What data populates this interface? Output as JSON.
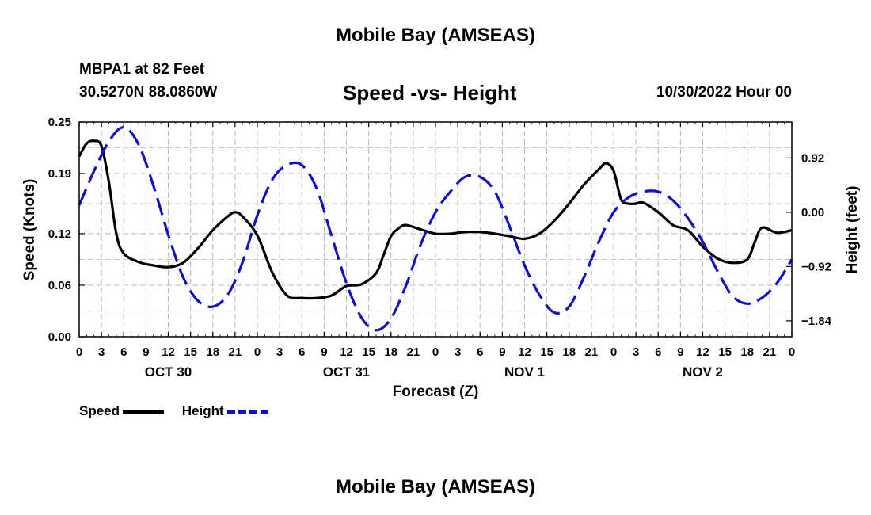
{
  "header": {
    "title": "Mobile Bay (AMSEAS)",
    "station": "MBPA1 at 82 Feet",
    "coordinates": "30.5270N  88.0860W",
    "subtitle": "Speed -vs- Height",
    "datetime": "10/30/2022 Hour 00"
  },
  "footer": {
    "title": "Mobile Bay (AMSEAS)"
  },
  "legend": {
    "speed_label": "Speed",
    "height_label": "Height"
  },
  "chart_data": {
    "type": "line",
    "title": "Speed -vs- Height",
    "xlabel": "Forecast (Z)",
    "ylabel_left": "Speed (Knots)",
    "ylabel_right": "Height (feet)",
    "xlim": [
      0,
      96
    ],
    "ylim_left": [
      0.0,
      0.25
    ],
    "ylim_right": [
      -2.11,
      1.53
    ],
    "x_ticks": [
      0,
      3,
      6,
      9,
      12,
      15,
      18,
      21,
      24,
      27,
      30,
      33,
      36,
      39,
      42,
      45,
      48,
      51,
      54,
      57,
      60,
      63,
      66,
      69,
      72,
      75,
      78,
      81,
      84,
      87,
      90,
      93,
      96
    ],
    "x_tick_labels": [
      "0",
      "3",
      "6",
      "9",
      "12",
      "15",
      "18",
      "21",
      "0",
      "3",
      "6",
      "9",
      "12",
      "15",
      "18",
      "21",
      "0",
      "3",
      "6",
      "9",
      "12",
      "15",
      "18",
      "21",
      "0",
      "3",
      "6",
      "9",
      "12",
      "15",
      "18",
      "21",
      "0"
    ],
    "day_labels": [
      {
        "x": 12,
        "label": "OCT 30"
      },
      {
        "x": 36,
        "label": "OCT 31"
      },
      {
        "x": 60,
        "label": "NOV 1"
      },
      {
        "x": 84,
        "label": "NOV 2"
      }
    ],
    "y_left_ticks": [
      0.0,
      0.06,
      0.12,
      0.19,
      0.25
    ],
    "y_left_tick_labels": [
      "0.00",
      "0.06",
      "0.12",
      "0.19",
      "0.25"
    ],
    "y_right_ticks": [
      0.92,
      0.0,
      -0.92,
      -1.84
    ],
    "y_right_tick_labels": [
      "0.92",
      "0.00",
      "−0.92",
      "−1.84"
    ],
    "grid": true,
    "legend_position": "bottom-left",
    "series": [
      {
        "name": "Speed",
        "axis": "left",
        "color": "#000000",
        "style": "solid",
        "x": [
          0,
          1,
          2,
          3,
          4,
          5,
          6,
          8,
          10,
          12,
          14,
          16,
          18,
          20,
          21,
          22,
          24,
          26,
          28,
          30,
          32,
          34,
          36,
          38,
          40,
          41,
          42,
          43,
          44,
          46,
          48,
          50,
          52,
          54,
          56,
          58,
          60,
          62,
          64,
          66,
          68,
          70,
          71,
          72,
          73,
          74,
          75,
          76,
          78,
          80,
          82,
          84,
          86,
          88,
          90,
          91,
          92,
          94,
          96
        ],
        "values": [
          0.21,
          0.225,
          0.228,
          0.222,
          0.18,
          0.12,
          0.097,
          0.087,
          0.083,
          0.081,
          0.086,
          0.103,
          0.124,
          0.14,
          0.145,
          0.14,
          0.118,
          0.075,
          0.048,
          0.045,
          0.045,
          0.048,
          0.059,
          0.061,
          0.074,
          0.095,
          0.117,
          0.126,
          0.13,
          0.125,
          0.12,
          0.12,
          0.122,
          0.122,
          0.12,
          0.117,
          0.114,
          0.12,
          0.135,
          0.155,
          0.177,
          0.195,
          0.202,
          0.193,
          0.16,
          0.155,
          0.155,
          0.156,
          0.145,
          0.13,
          0.124,
          0.105,
          0.091,
          0.086,
          0.09,
          0.11,
          0.127,
          0.121,
          0.124
        ]
      },
      {
        "name": "Height",
        "axis": "right",
        "color": "#1010cc",
        "style": "dashed",
        "x": [
          0,
          2,
          4,
          6,
          8,
          10,
          12,
          14,
          16,
          18,
          20,
          22,
          24,
          26,
          28,
          30,
          32,
          34,
          36,
          38,
          40,
          42,
          44,
          46,
          48,
          50,
          52,
          54,
          56,
          58,
          60,
          62,
          64,
          66,
          68,
          70,
          72,
          74,
          76,
          78,
          80,
          82,
          84,
          86,
          88,
          90,
          92,
          94,
          96
        ],
        "values": [
          0.12,
          0.7,
          1.2,
          1.44,
          1.15,
          0.45,
          -0.38,
          -1.1,
          -1.5,
          -1.6,
          -1.4,
          -0.85,
          -0.05,
          0.55,
          0.8,
          0.8,
          0.4,
          -0.4,
          -1.2,
          -1.78,
          -2.0,
          -1.8,
          -1.25,
          -0.55,
          0.0,
          0.35,
          0.6,
          0.6,
          0.35,
          -0.25,
          -0.9,
          -1.4,
          -1.7,
          -1.6,
          -1.1,
          -0.5,
          0.0,
          0.25,
          0.35,
          0.35,
          0.2,
          -0.1,
          -0.5,
          -1.0,
          -1.42,
          -1.55,
          -1.45,
          -1.2,
          -0.8
        ]
      }
    ]
  }
}
